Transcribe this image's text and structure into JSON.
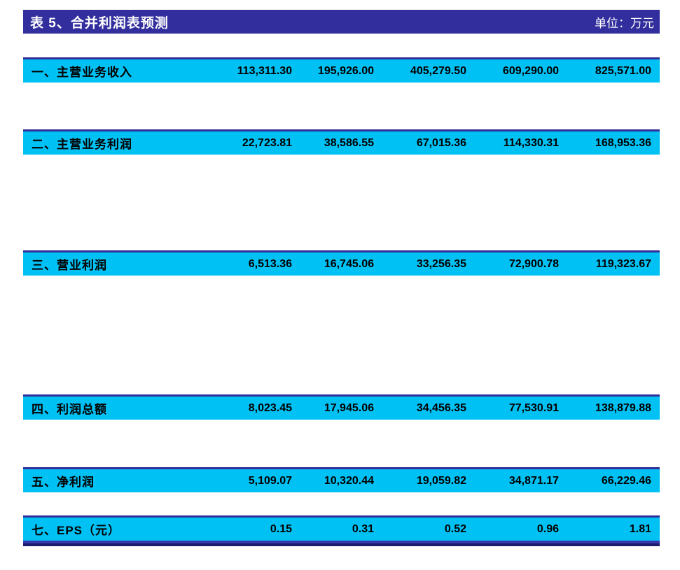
{
  "title_bar": {
    "title": "表 5、合并利润表预测",
    "unit": "单位：万元"
  },
  "table": {
    "rows": [
      {
        "label": "一、主营业务收入",
        "values": [
          "113,311.30",
          "195,926.00",
          "405,279.50",
          "609,290.00",
          "825,571.00"
        ]
      },
      {
        "label": "二、主营业务利润",
        "values": [
          "22,723.81",
          "38,586.55",
          "67,015.36",
          "114,330.31",
          "168,953.36"
        ]
      },
      {
        "label": "三、营业利润",
        "values": [
          "6,513.36",
          "16,745.06",
          "33,256.35",
          "72,900.78",
          "119,323.67"
        ]
      },
      {
        "label": "四、利润总额",
        "values": [
          "8,023.45",
          "17,945.06",
          "34,456.35",
          "77,530.91",
          "138,879.88"
        ]
      },
      {
        "label": "五、净利润",
        "values": [
          "5,109.07",
          "10,320.44",
          "19,059.82",
          "34,871.17",
          "66,229.46"
        ]
      },
      {
        "label": "七、EPS（元）",
        "values": [
          "0.15",
          "0.31",
          "0.52",
          "0.96",
          "1.81"
        ]
      }
    ]
  },
  "colors": {
    "header_bar_bg": "#322E9D",
    "header_text": "#FFFFFF",
    "row_bg": "#00C1F4",
    "row_top_border": "#312D9B",
    "cell_text": "#000000",
    "bottom_rule_upper": "#3736AE",
    "bottom_rule_lower": "#1D1C6E"
  }
}
